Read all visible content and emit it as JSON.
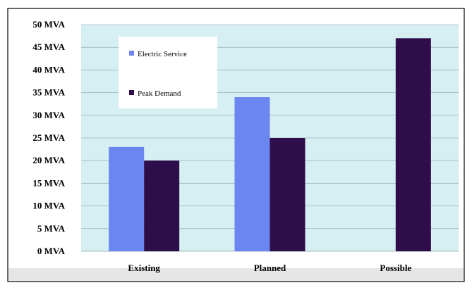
{
  "chart_data": {
    "type": "bar",
    "categories": [
      "Existing",
      "Planned",
      "Possible"
    ],
    "series": [
      {
        "name": "Electric Service",
        "color": "#6b86f0",
        "values": [
          23,
          34,
          null
        ]
      },
      {
        "name": "Peak Demand",
        "color": "#2e0d4a",
        "values": [
          20,
          25,
          47
        ]
      }
    ],
    "y_ticks": [
      "0 MVA",
      "5 MVA",
      "10 MVA",
      "15 MVA",
      "20 MVA",
      "25 MVA",
      "30 MVA",
      "35 MVA",
      "40 MVA",
      "45 MVA",
      "50 MVA"
    ],
    "ylim": [
      0,
      50
    ],
    "grid": true,
    "legend_position": "top-left",
    "plot_background": "#d6eff3",
    "gridline_color": "#8aa0a8"
  }
}
